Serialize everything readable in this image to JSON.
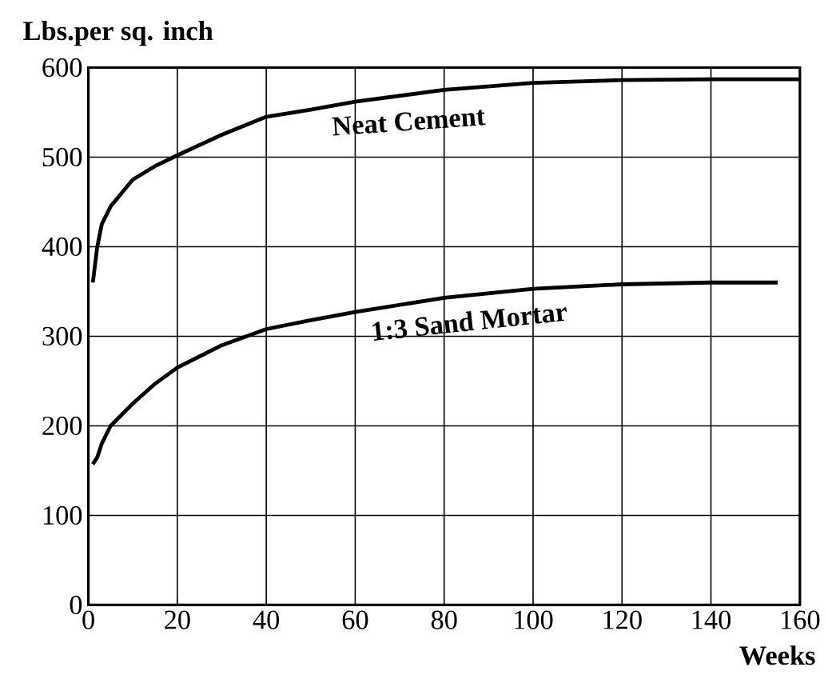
{
  "chart_data": {
    "type": "line",
    "ylabel": "Lbs.per sq. inch",
    "xlabel": "Weeks",
    "xlim": [
      0,
      160
    ],
    "ylim": [
      0,
      600
    ],
    "xticks": [
      0,
      20,
      40,
      60,
      80,
      100,
      120,
      140,
      160
    ],
    "yticks": [
      0,
      100,
      200,
      300,
      400,
      500,
      600
    ],
    "grid": true,
    "marker": "none",
    "line_style": "solid",
    "series": [
      {
        "name": "Neat Cement",
        "color": "#000000",
        "x": [
          1,
          2,
          3,
          5,
          10,
          15,
          20,
          30,
          40,
          50,
          60,
          80,
          100,
          120,
          140,
          160
        ],
        "values": [
          360,
          400,
          425,
          445,
          475,
          490,
          502,
          525,
          545,
          553,
          562,
          575,
          583,
          586,
          587,
          587
        ]
      },
      {
        "name": "1:3 Sand Mortar",
        "color": "#000000",
        "x": [
          1,
          2,
          3,
          5,
          10,
          15,
          20,
          30,
          40,
          50,
          60,
          80,
          100,
          120,
          140,
          155
        ],
        "values": [
          157,
          165,
          180,
          200,
          225,
          247,
          265,
          290,
          308,
          318,
          327,
          343,
          353,
          358,
          360,
          360
        ]
      }
    ]
  }
}
